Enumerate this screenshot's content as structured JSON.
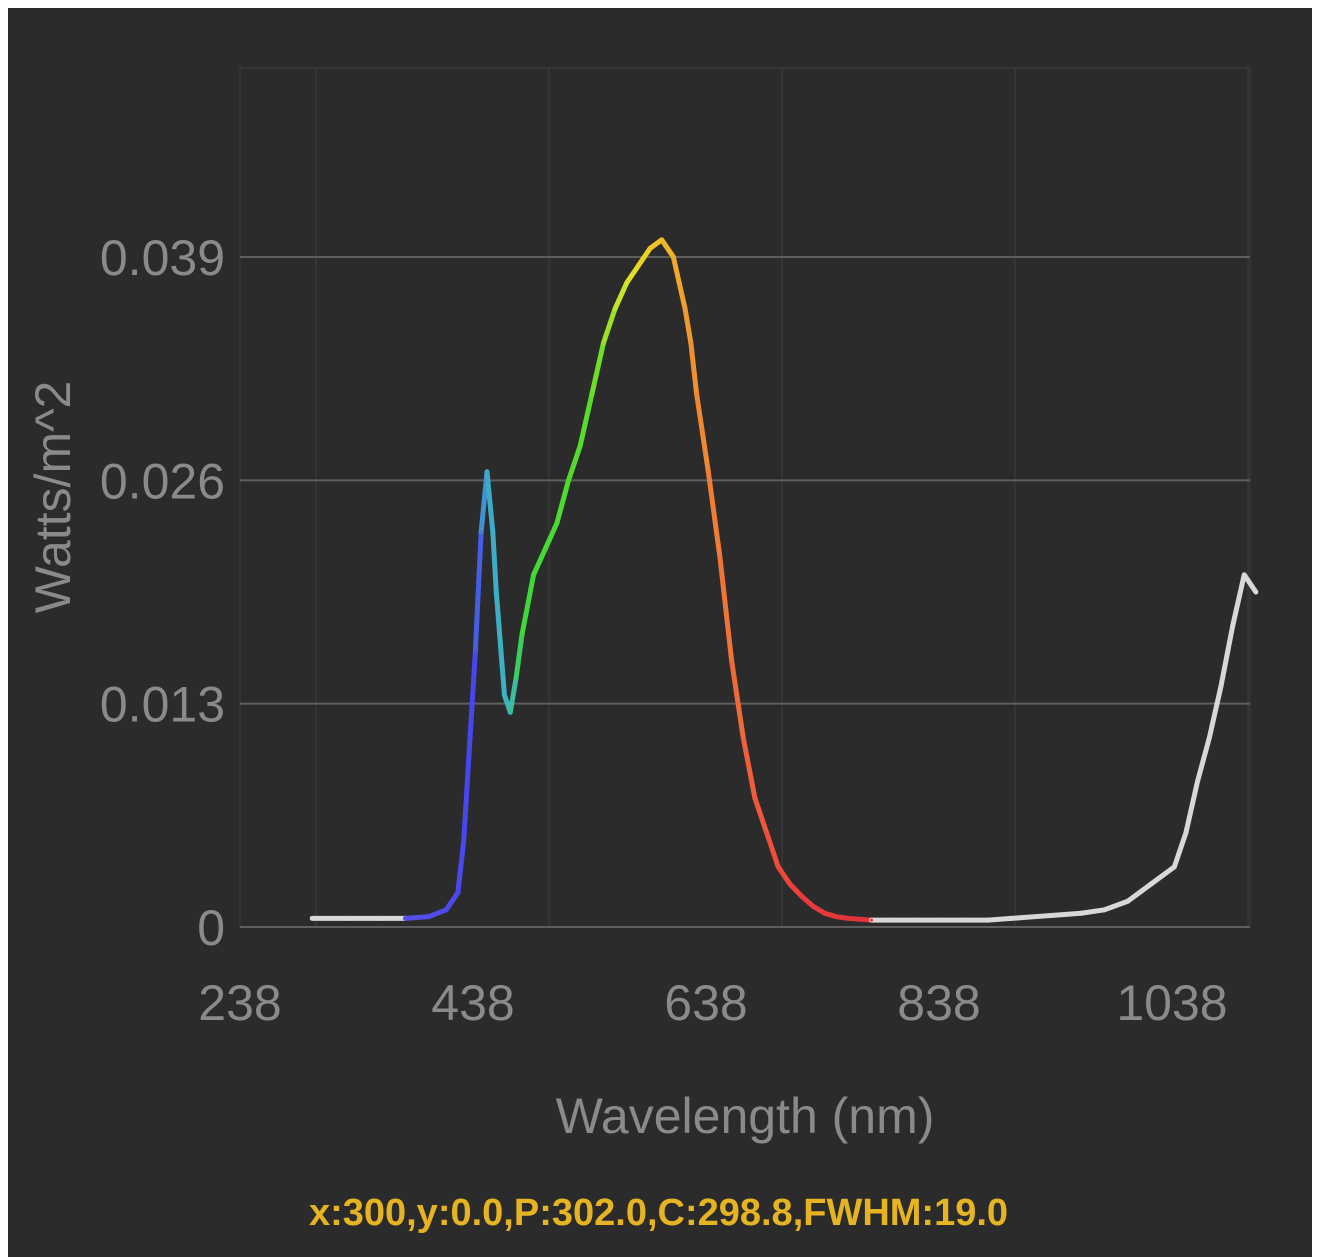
{
  "chart_data": {
    "type": "line",
    "xlabel": "Wavelength (nm)",
    "ylabel": "Watts/m^2",
    "xlim": [
      300,
      1110
    ],
    "ylim": [
      0,
      0.039
    ],
    "xticks": [
      238,
      438,
      638,
      838,
      1038
    ],
    "xtick_labels": [
      "238",
      "438",
      "638",
      "838",
      "1038"
    ],
    "yticks": [
      0,
      0.013,
      0.026,
      0.039
    ],
    "ytick_labels": [
      "0",
      "0.013",
      "0.026",
      "0.039"
    ],
    "grid": "horizontal",
    "background_color": "#2b2b2b",
    "series": [
      {
        "color_scheme": "visible-spectrum",
        "x": [
          300,
          330,
          360,
          380,
          400,
          415,
          425,
          430,
          440,
          445,
          450,
          455,
          458,
          465,
          470,
          475,
          480,
          490,
          500,
          510,
          520,
          530,
          540,
          550,
          560,
          570,
          580,
          590,
          600,
          610,
          615,
          620,
          625,
          630,
          640,
          650,
          660,
          670,
          680,
          690,
          700,
          710,
          720,
          730,
          740,
          750,
          760,
          780,
          800,
          820,
          840,
          860,
          880,
          900,
          920,
          940,
          960,
          980,
          1000,
          1020,
          1040,
          1050,
          1060,
          1070,
          1080,
          1090,
          1100,
          1110
        ],
        "y": [
          0.0005,
          0.0005,
          0.0005,
          0.0005,
          0.0006,
          0.001,
          0.002,
          0.005,
          0.016,
          0.023,
          0.0265,
          0.023,
          0.0195,
          0.0135,
          0.0125,
          0.0145,
          0.017,
          0.0205,
          0.022,
          0.0235,
          0.026,
          0.028,
          0.031,
          0.034,
          0.036,
          0.0375,
          0.0385,
          0.0395,
          0.04,
          0.039,
          0.0375,
          0.036,
          0.034,
          0.031,
          0.0265,
          0.0215,
          0.0155,
          0.011,
          0.0075,
          0.0055,
          0.0035,
          0.0025,
          0.0018,
          0.0012,
          0.0008,
          0.0006,
          0.0005,
          0.0004,
          0.0004,
          0.0004,
          0.0004,
          0.0004,
          0.0004,
          0.0005,
          0.0006,
          0.0007,
          0.0008,
          0.001,
          0.0015,
          0.0025,
          0.0035,
          0.0055,
          0.0085,
          0.011,
          0.014,
          0.0175,
          0.0205,
          0.0195
        ]
      }
    ]
  },
  "readout": "x:300,y:0.0,P:302.0,C:298.8,FWHM:19.0"
}
